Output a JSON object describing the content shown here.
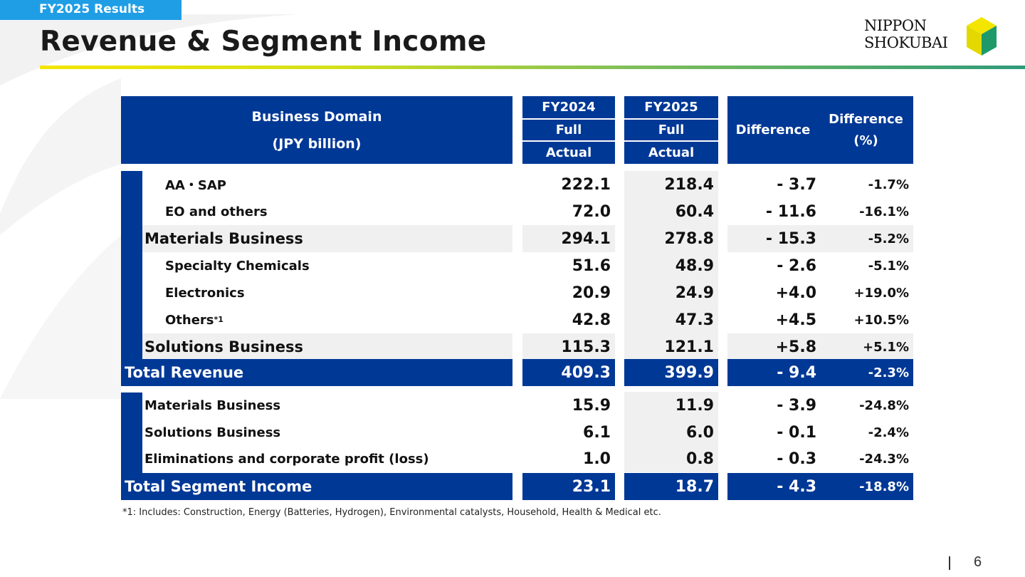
{
  "header": {
    "tag": "FY2025 Results",
    "title": "Revenue & Segment Income",
    "logo_line1": "NIPPON",
    "logo_line2": "SHOKUBAI"
  },
  "colors": {
    "accent_navy": "#003896",
    "tag_blue": "#1f9ee6",
    "row_shade": "#f0f0f0"
  },
  "table": {
    "headers": {
      "domain_line1": "Business Domain",
      "domain_line2": "(JPY billion)",
      "fy2024": "FY2024",
      "fy2025": "FY2025",
      "full": "Full",
      "actual": "Actual",
      "difference": "Difference",
      "difference_pct_line1": "Difference",
      "difference_pct_line2": "(%)"
    },
    "revenue_rows": [
      {
        "label": "AA・SAP",
        "fy2024": "222.1",
        "fy2025": "218.4",
        "diff": "- 3.7",
        "pct": "-1.7%"
      },
      {
        "label": "EO and others",
        "fy2024": "72.0",
        "fy2025": "60.4",
        "diff": "- 11.6",
        "pct": "-16.1%"
      },
      {
        "label": "Materials Business",
        "fy2024": "294.1",
        "fy2025": "278.8",
        "diff": "- 15.3",
        "pct": "-5.2%"
      },
      {
        "label": "Specialty Chemicals",
        "fy2024": "51.6",
        "fy2025": "48.9",
        "diff": "- 2.6",
        "pct": "-5.1%"
      },
      {
        "label": "Electronics",
        "fy2024": "20.9",
        "fy2025": "24.9",
        "diff": "+4.0",
        "pct": "+19.0%"
      },
      {
        "label": "Others",
        "note_mark": "*1",
        "fy2024": "42.8",
        "fy2025": "47.3",
        "diff": "+4.5",
        "pct": "+10.5%"
      },
      {
        "label": "Solutions Business",
        "fy2024": "115.3",
        "fy2025": "121.1",
        "diff": "+5.8",
        "pct": "+5.1%"
      }
    ],
    "total_revenue": {
      "label": "Total Revenue",
      "fy2024": "409.3",
      "fy2025": "399.9",
      "diff": "- 9.4",
      "pct": "-2.3%"
    },
    "income_rows": [
      {
        "label": "Materials Business",
        "fy2024": "15.9",
        "fy2025": "11.9",
        "diff": "- 3.9",
        "pct": "-24.8%"
      },
      {
        "label": "Solutions Business",
        "fy2024": "6.1",
        "fy2025": "6.0",
        "diff": "- 0.1",
        "pct": "-2.4%"
      },
      {
        "label": "Eliminations and corporate profit (loss)",
        "fy2024": "1.0",
        "fy2025": "0.8",
        "diff": "- 0.3",
        "pct": "-24.3%"
      }
    ],
    "total_income": {
      "label": "Total Segment Income",
      "fy2024": "23.1",
      "fy2025": "18.7",
      "diff": "- 4.3",
      "pct": "-18.8%"
    }
  },
  "footnote": "*1: Includes: Construction, Energy (Batteries, Hydrogen), Environmental catalysts, Household, Health & Medical etc.",
  "page_number": "6"
}
